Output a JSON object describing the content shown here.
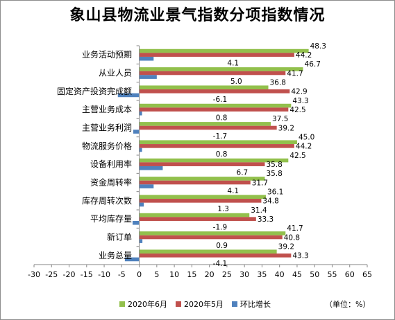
{
  "chart_data": {
    "type": "bar",
    "orientation": "horizontal",
    "title": "象山县物流业景气指数分项指数情况",
    "categories": [
      "业务活动预期",
      "从业人员",
      "固定资产投资完成额",
      "主营业务成本",
      "主营业务利润",
      "物流服务价格",
      "设备利用率",
      "资金周转率",
      "库存周转次数",
      "平均库存量",
      "新订单",
      "业务总量"
    ],
    "series": [
      {
        "name": "2020年6月",
        "color": "#92c04c",
        "values": [
          48.3,
          46.7,
          36.8,
          43.3,
          37.5,
          45.0,
          42.5,
          35.8,
          36.1,
          31.4,
          41.7,
          39.2
        ],
        "labels": [
          "48.3",
          "46.7",
          "36.8",
          "43.3",
          "37.5",
          "45.0",
          "42.5",
          "35.8",
          "36.1",
          "31.4",
          "41.7",
          "39.2"
        ]
      },
      {
        "name": "2020年5月",
        "color": "#c0504d",
        "values": [
          44.2,
          41.7,
          42.9,
          42.5,
          39.2,
          44.2,
          35.8,
          31.7,
          34.8,
          33.3,
          40.8,
          43.3
        ],
        "labels": [
          "44.2",
          "41.7",
          "42.9",
          "42.5",
          "39.2",
          "44.2",
          "35.8",
          "31.7",
          "34.8",
          "33.3",
          "40.8",
          "43.3"
        ]
      },
      {
        "name": "环比增长",
        "color": "#4f81bd",
        "values": [
          4.1,
          5.0,
          -6.1,
          0.8,
          -1.7,
          0.8,
          6.7,
          4.1,
          1.3,
          -1.9,
          0.9,
          -4.1
        ],
        "labels": [
          "4.1",
          "5.0",
          "-6.1",
          "0.8",
          "-1.7",
          "0.8",
          "6.7",
          "4.1",
          "1.3",
          "-1.9",
          "0.9",
          "-4.1"
        ]
      }
    ],
    "x_ticks": [
      "-30",
      "-25",
      "-20",
      "-15",
      "-10",
      "-5",
      "0",
      "5",
      "10",
      "15",
      "20",
      "25",
      "30",
      "35",
      "40",
      "45",
      "50",
      "55",
      "60",
      "65"
    ],
    "xlim": [
      -30,
      65
    ],
    "grid": false,
    "legend_position": "bottom",
    "unit_note": "（单位：%）"
  }
}
